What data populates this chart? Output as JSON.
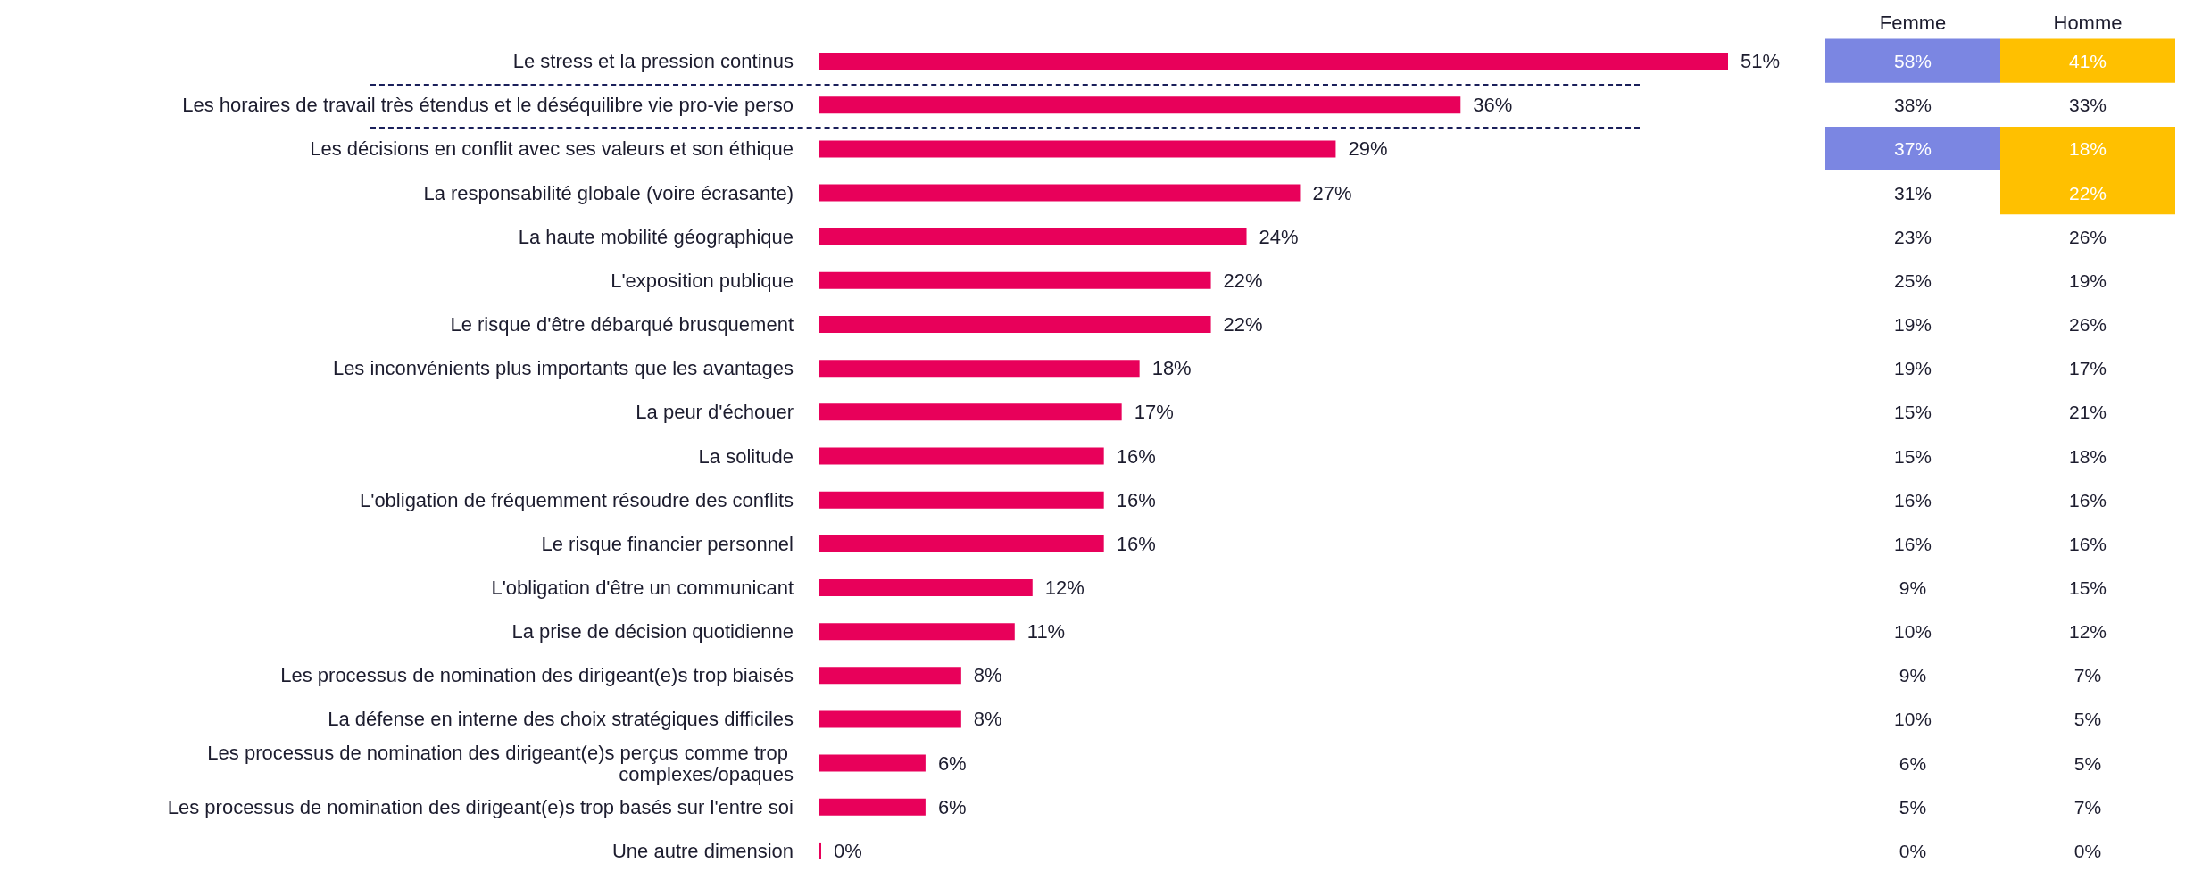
{
  "chart_data": [
    {
      "type": "bar",
      "orientation": "horizontal",
      "categories": [
        "Le stress et la pression continus",
        "Les horaires de travail très étendus et le déséquilibre vie pro-vie perso",
        "Les décisions en conflit avec ses valeurs et son éthique",
        "La responsabilité globale (voire écrasante)",
        "La haute mobilité géographique",
        "L'exposition publique",
        "Le risque d'être débarqué brusquement",
        "Les inconvénients plus importants que les avantages",
        "La peur d'échouer",
        "La solitude",
        "L'obligation de fréquemment résoudre des conflits",
        "Le risque financier personnel",
        "L'obligation d'être un communicant",
        "La prise de décision quotidienne",
        "Les processus de nomination des dirigeant(e)s trop biaisés",
        "La défense en interne des choix stratégiques difficiles",
        "Les processus de nomination des dirigeant(e)s perçus comme trop complexes/opaques",
        "Les processus de nomination des dirigeant(e)s trop basés sur l'entre soi",
        "Une autre dimension"
      ],
      "values": [
        51,
        36,
        29,
        27,
        24,
        22,
        22,
        18,
        17,
        16,
        16,
        16,
        12,
        11,
        8,
        8,
        6,
        6,
        0
      ],
      "value_labels": [
        "51%",
        "36%",
        "29%",
        "27%",
        "24%",
        "22%",
        "22%",
        "18%",
        "17%",
        "16%",
        "16%",
        "16%",
        "12%",
        "11%",
        "8%",
        "8%",
        "6%",
        "6%",
        "0%"
      ],
      "color": "#e8005a"
    },
    {
      "type": "heatmap",
      "categories": [
        "Femme",
        "Homme"
      ],
      "y_categories": [
        null,
        null,
        null,
        null,
        null,
        null,
        null,
        null,
        null,
        null,
        null,
        null,
        null,
        null,
        null,
        null,
        null,
        null,
        null
      ],
      "cells": [
        [
          58,
          41
        ],
        [
          38,
          33
        ],
        [
          37,
          18
        ],
        [
          31,
          22
        ],
        [
          23,
          26
        ],
        [
          25,
          19
        ],
        [
          19,
          26
        ],
        [
          19,
          17
        ],
        [
          15,
          21
        ],
        [
          15,
          18
        ],
        [
          16,
          16
        ],
        [
          16,
          16
        ],
        [
          9,
          15
        ],
        [
          10,
          12
        ],
        [
          9,
          7
        ],
        [
          10,
          5
        ],
        [
          6,
          5
        ],
        [
          5,
          7
        ],
        [
          0,
          0
        ]
      ],
      "cell_labels": [
        [
          "58%",
          "41%"
        ],
        [
          "38%",
          "33%"
        ],
        [
          "37%",
          "18%"
        ],
        [
          "31%",
          "22%"
        ],
        [
          "23%",
          "26%"
        ],
        [
          "25%",
          "19%"
        ],
        [
          "19%",
          "26%"
        ],
        [
          "19%",
          "17%"
        ],
        [
          "15%",
          "21%"
        ],
        [
          "15%",
          "18%"
        ],
        [
          "16%",
          "16%"
        ],
        [
          "16%",
          "16%"
        ],
        [
          "9%",
          "15%"
        ],
        [
          "10%",
          "12%"
        ],
        [
          "9%",
          "7%"
        ],
        [
          "10%",
          "5%"
        ],
        [
          "6%",
          "5%"
        ],
        [
          "5%",
          "7%"
        ],
        [
          "0%",
          "0%"
        ]
      ],
      "colors": [
        [
          "#7b86e2",
          "#ffc000"
        ],
        [
          null,
          null
        ],
        [
          "#7b86e2",
          "#ffc000"
        ],
        [
          null,
          "#ffc000"
        ],
        [
          null,
          null
        ],
        [
          null,
          null
        ],
        [
          null,
          null
        ],
        [
          null,
          null
        ],
        [
          null,
          null
        ],
        [
          null,
          null
        ],
        [
          null,
          null
        ],
        [
          null,
          null
        ],
        [
          null,
          null
        ],
        [
          null,
          null
        ],
        [
          null,
          null
        ],
        [
          null,
          null
        ],
        [
          null,
          null
        ],
        [
          null,
          null
        ],
        [
          null,
          null
        ]
      ],
      "tick_labels": "x"
    }
  ]
}
